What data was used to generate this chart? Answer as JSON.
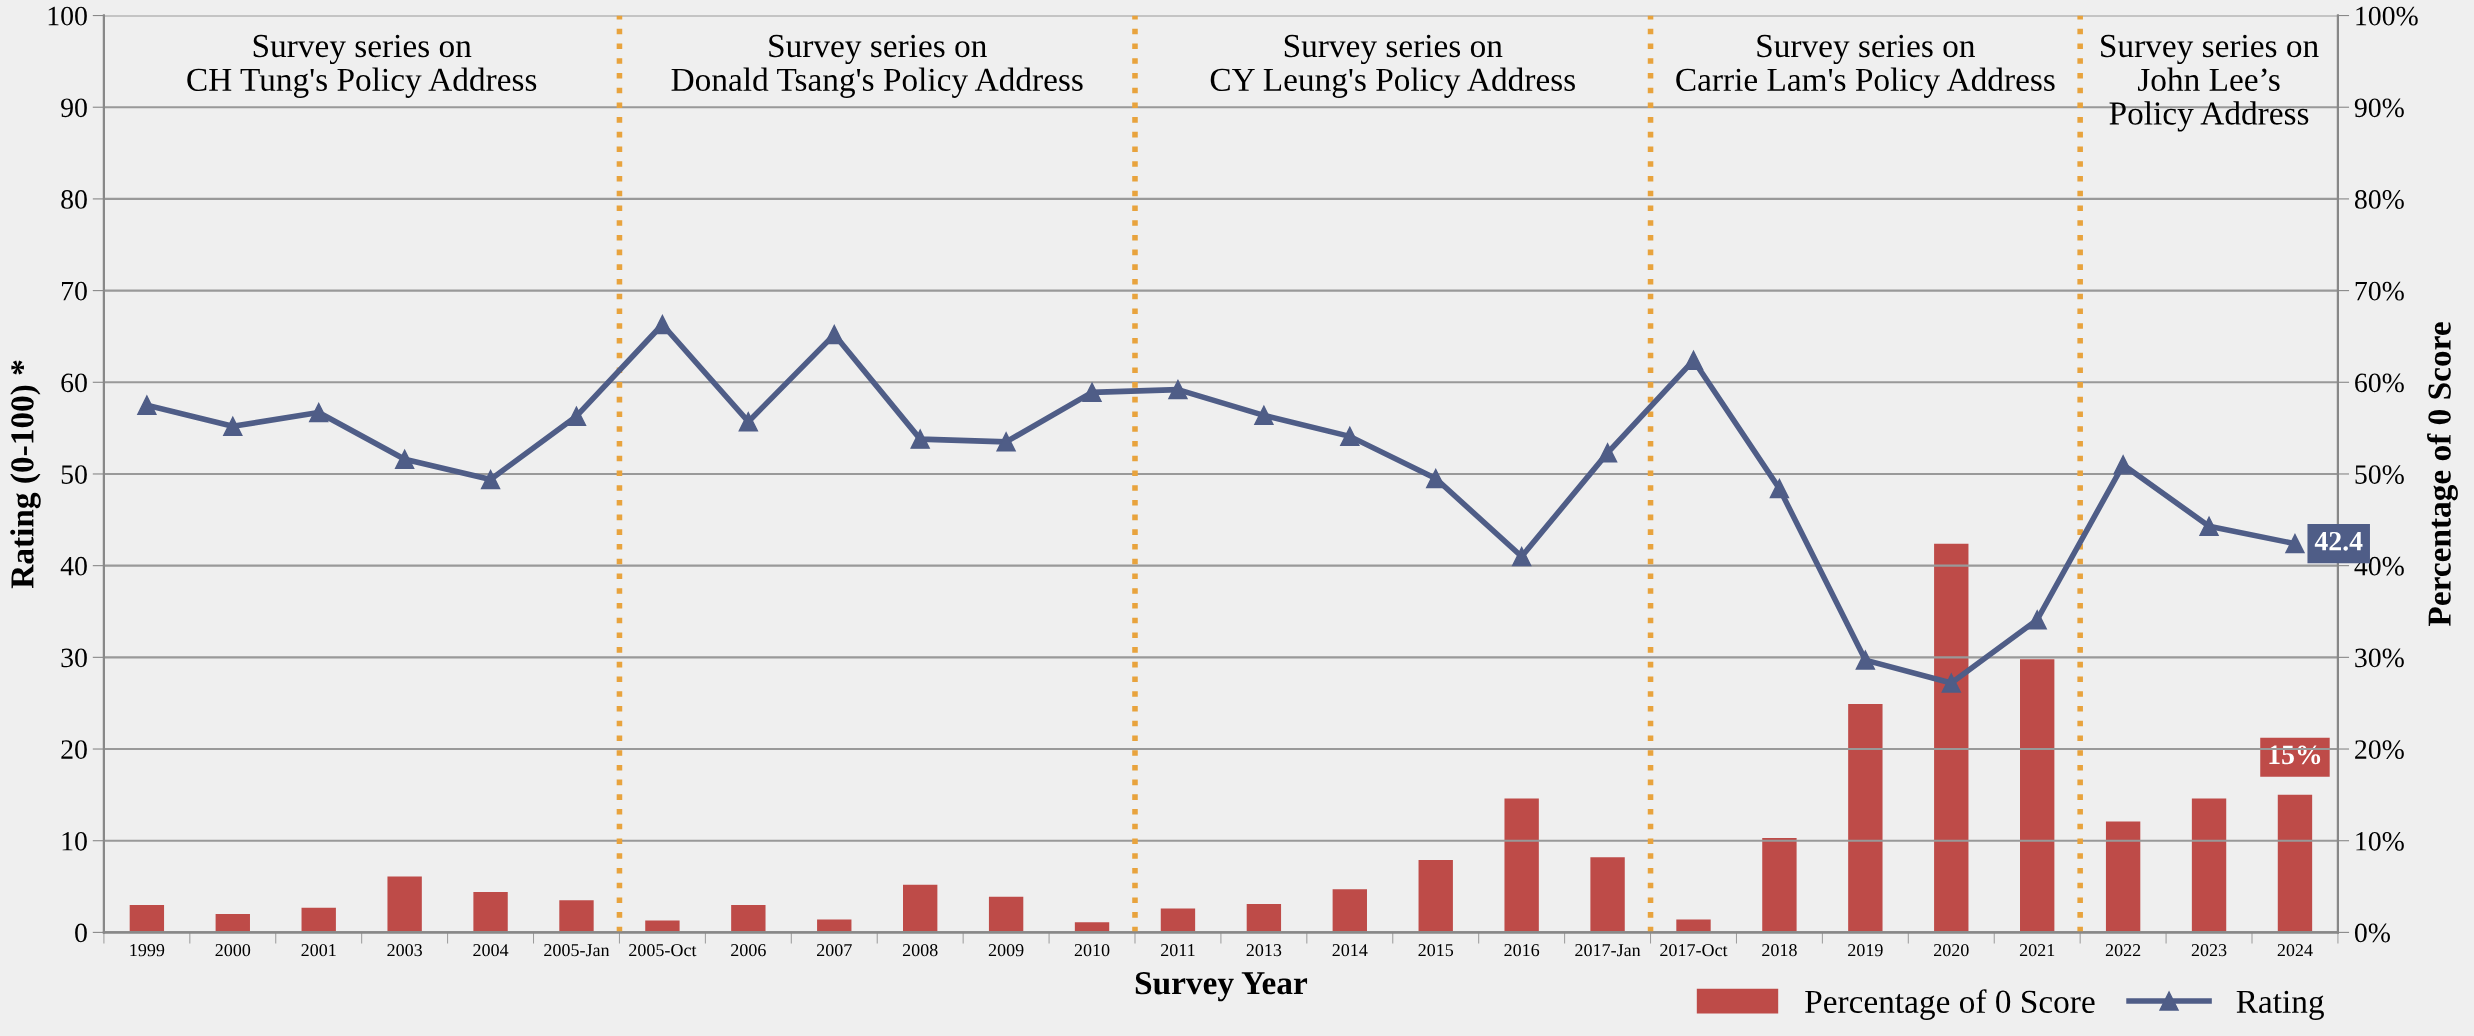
{
  "chart_data": {
    "type": "bar",
    "xlabel": "Survey Year",
    "ylabel": "Rating (0-100) *",
    "y2label": "Percentage of 0 Score",
    "categories": [
      "1999",
      "2000",
      "2001",
      "2003",
      "2004",
      "2005-Jan",
      "2005-Oct",
      "2006",
      "2007",
      "2008",
      "2009",
      "2010",
      "2011",
      "2013",
      "2014",
      "2015",
      "2016",
      "2017-Jan",
      "2017-Oct",
      "2018",
      "2019",
      "2020",
      "2021",
      "2022",
      "2023",
      "2024"
    ],
    "series": [
      {
        "name": "Percentage of 0 Score",
        "axis": "y2",
        "color": "#be4b48",
        "values": [
          3.0,
          2.0,
          2.7,
          6.1,
          4.4,
          3.5,
          1.3,
          3.0,
          1.4,
          5.2,
          3.9,
          1.1,
          2.6,
          3.1,
          4.7,
          7.9,
          14.6,
          8.2,
          1.4,
          10.3,
          24.9,
          42.4,
          29.8,
          12.1,
          14.6,
          15.0
        ],
        "value_labels": [
          null,
          null,
          null,
          null,
          null,
          null,
          null,
          null,
          null,
          null,
          null,
          null,
          null,
          null,
          null,
          null,
          null,
          null,
          null,
          null,
          null,
          null,
          null,
          null,
          null,
          "15%"
        ]
      },
      {
        "name": "Rating",
        "type": "line",
        "axis": "y",
        "color": "#4f5d87",
        "marker": "triangle",
        "line_style": "solid",
        "values": [
          57.5,
          55.2,
          56.7,
          51.6,
          49.4,
          56.3,
          66.3,
          55.7,
          65.2,
          53.8,
          53.5,
          58.9,
          59.2,
          56.4,
          54.1,
          49.5,
          41.0,
          52.3,
          62.4,
          48.4,
          29.7,
          27.2,
          34.1,
          51.0,
          44.3,
          42.4
        ],
        "value_labels": [
          null,
          null,
          null,
          null,
          null,
          null,
          null,
          null,
          null,
          null,
          null,
          null,
          null,
          null,
          null,
          null,
          null,
          null,
          null,
          null,
          null,
          null,
          null,
          null,
          null,
          "42.4"
        ]
      }
    ],
    "ylim": [
      0,
      100
    ],
    "yticks": [
      0,
      10,
      20,
      30,
      40,
      50,
      60,
      70,
      80,
      90,
      100
    ],
    "y2lim": [
      0,
      100
    ],
    "y2ticks": [
      {
        "value": 0,
        "label": "0%"
      },
      {
        "value": 10,
        "label": "10%"
      },
      {
        "value": 20,
        "label": "20%"
      },
      {
        "value": 30,
        "label": "30%"
      },
      {
        "value": 40,
        "label": "40%"
      },
      {
        "value": 50,
        "label": "50%"
      },
      {
        "value": 60,
        "label": "60%"
      },
      {
        "value": 70,
        "label": "70%"
      },
      {
        "value": 80,
        "label": "80%"
      },
      {
        "value": 90,
        "label": "90%"
      },
      {
        "value": 100,
        "label": "100%"
      }
    ],
    "annotations": [
      "Survey series on\nCH Tung's Policy Address",
      "Survey series on\nDonald Tsang's Policy Address",
      "Survey series on\nCY Leung's Policy Address",
      "Survey series on\nCarrie Lam's Policy Address",
      "Survey series on\nJohn Lee’s\nPolicy Address"
    ],
    "grid": "y",
    "legend": "bottom right"
  }
}
